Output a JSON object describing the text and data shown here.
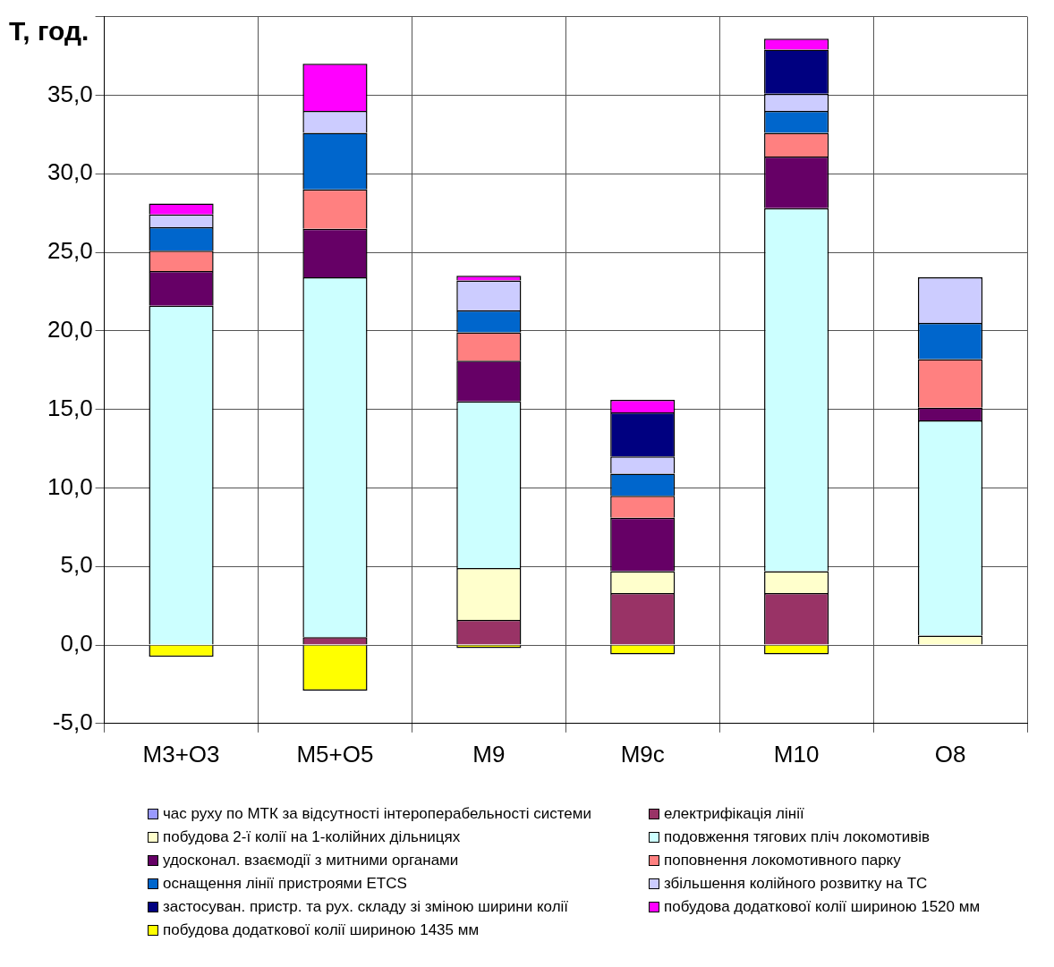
{
  "chart_data": {
    "type": "bar",
    "ylabel": "Т, год.",
    "stacked": true,
    "grid": true,
    "legend": "bottom",
    "categories": [
      "М3+О3",
      "М5+О5",
      "М9",
      "М9с",
      "М10",
      "О8"
    ],
    "ylim": [
      -5,
      40
    ],
    "yticks": [
      {
        "value": -5,
        "label": "-5,0"
      },
      {
        "value": 0,
        "label": "0,0"
      },
      {
        "value": 5,
        "label": "5,0"
      },
      {
        "value": 10,
        "label": "10,0"
      },
      {
        "value": 15,
        "label": "15,0"
      },
      {
        "value": 20,
        "label": "20,0"
      },
      {
        "value": 25,
        "label": "25,0"
      },
      {
        "value": 30,
        "label": "30,0"
      },
      {
        "value": 35,
        "label": "35,0"
      },
      {
        "value": 40,
        "label": null
      }
    ],
    "series": [
      {
        "name": "час руху по МТК за відсутності інтероперабельності системи",
        "color": "#9999ff",
        "values": [
          0,
          0,
          0,
          0,
          0,
          0
        ]
      },
      {
        "name": "електрифікація лінії",
        "color": "#993366",
        "values": [
          0,
          0.5,
          1.6,
          3.3,
          3.3,
          0
        ]
      },
      {
        "name": "побудова 2-ї колії на 1-колійних дільницях",
        "color": "#ffffcc",
        "values": [
          0,
          0,
          3.3,
          1.4,
          1.4,
          0.6
        ]
      },
      {
        "name": "подовження тягових пліч локомотивів",
        "color": "#ccffff",
        "values": [
          21.6,
          22.9,
          10.6,
          0,
          23.1,
          13.7
        ]
      },
      {
        "name": "удосконал. взаємодії з митними органами",
        "color": "#660066",
        "values": [
          2.2,
          3.1,
          2.6,
          3.4,
          3.3,
          0.8
        ]
      },
      {
        "name": "поповнення локомотивного парку",
        "color": "#ff8080",
        "values": [
          1.3,
          2.5,
          1.8,
          1.4,
          1.5,
          3.1
        ]
      },
      {
        "name": "оснащення лінії пристроями ETCS",
        "color": "#0066cc",
        "values": [
          1.5,
          3.6,
          1.4,
          1.4,
          1.4,
          2.3
        ]
      },
      {
        "name": "збільшення колійного розвитку на ТС",
        "color": "#ccccff",
        "values": [
          0.8,
          1.4,
          1.9,
          1.1,
          1.1,
          2.9
        ]
      },
      {
        "name": "застосуван. пристр. та рух. складу зі зміною ширини колії",
        "color": "#000080",
        "values": [
          0,
          0,
          0,
          2.8,
          2.8,
          0
        ]
      },
      {
        "name": "побудова додаткової колії шириною 1520 мм",
        "color": "#ff00ff",
        "values": [
          0.7,
          3.0,
          0.3,
          0.8,
          0.7,
          0
        ]
      },
      {
        "name": "побудова додаткової колії шириною 1435 мм",
        "color": "#ffff00",
        "values": [
          -0.75,
          -2.9,
          -0.2,
          -0.6,
          -0.6,
          0
        ]
      }
    ]
  }
}
